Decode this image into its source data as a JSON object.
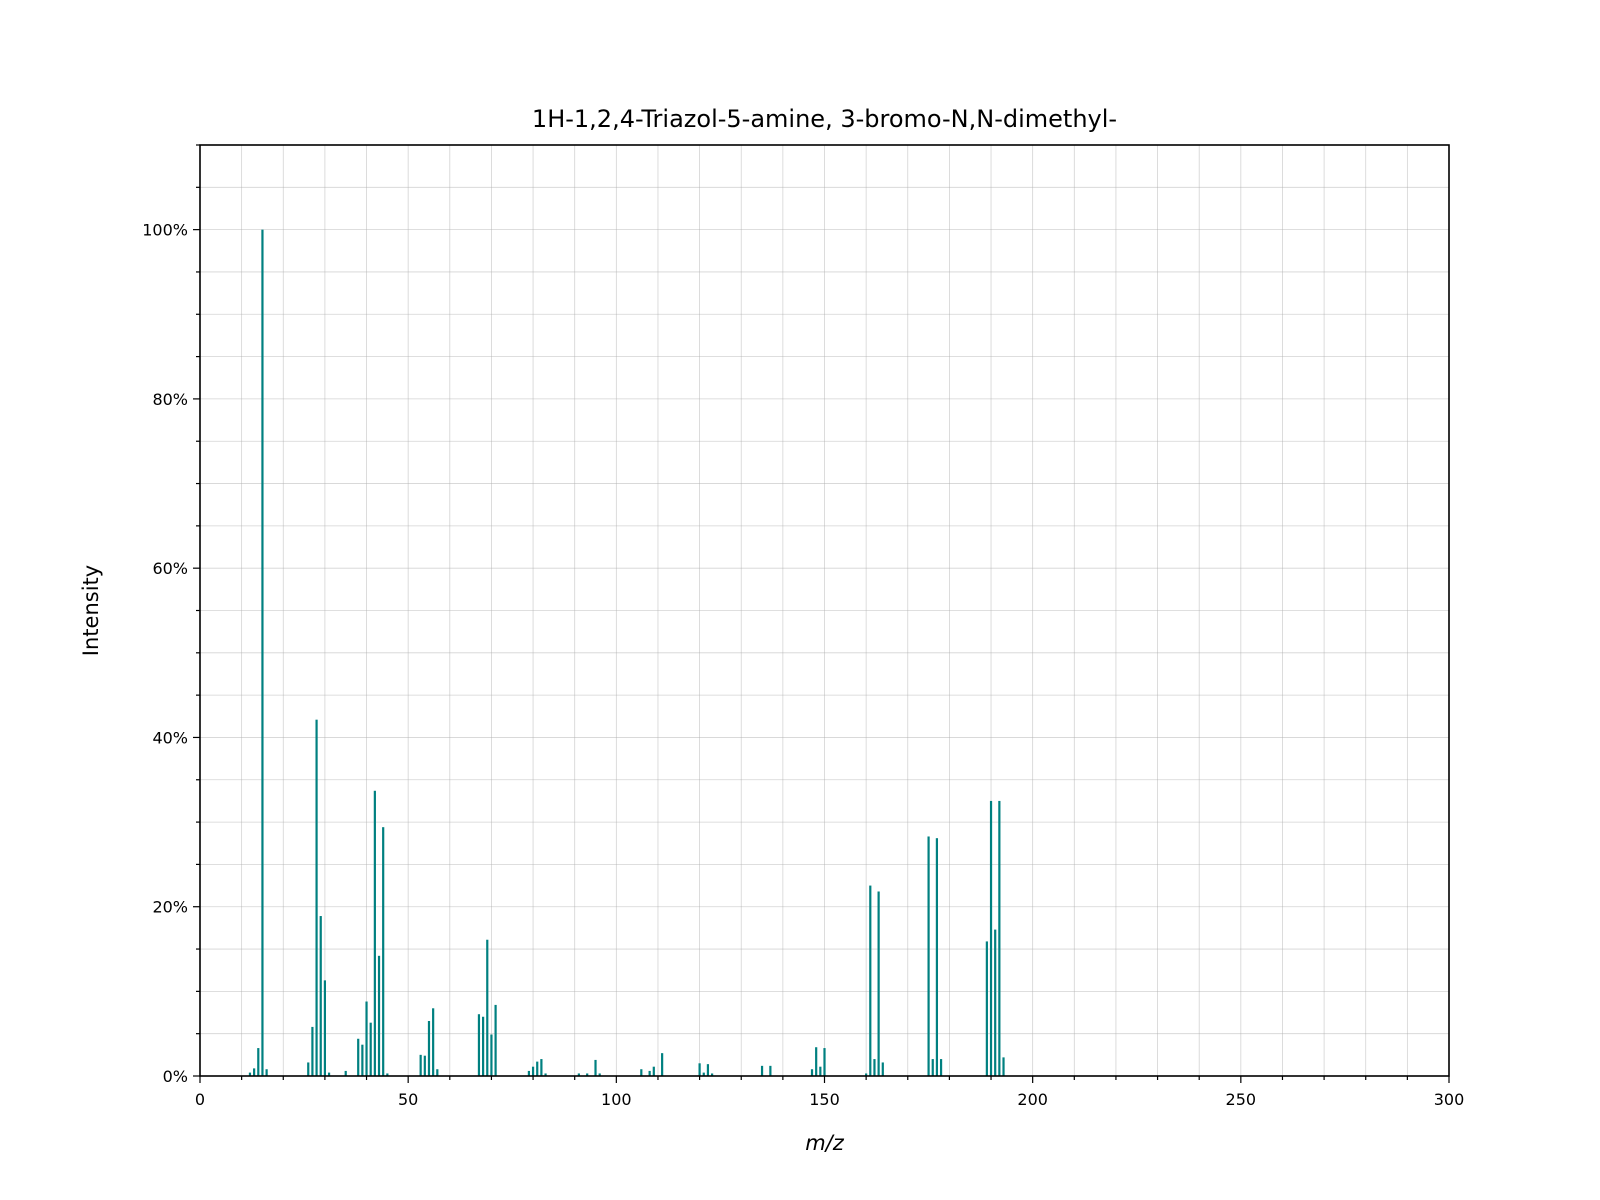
{
  "colors": {
    "bar": "#008080",
    "grid": "#b0b0b0",
    "frame": "#000000"
  },
  "chart_data": {
    "type": "bar",
    "title": "1H-1,2,4-Triazol-5-amine, 3-bromo-N,N-dimethyl-",
    "xlabel": "m/z",
    "ylabel": "Intensity",
    "xlim": [
      0,
      300
    ],
    "ylim": [
      0,
      110
    ],
    "grid": true,
    "legend": "none",
    "x_ticks": [
      0,
      50,
      100,
      150,
      200,
      250,
      300
    ],
    "x_tick_labels": [
      "0",
      "50",
      "100",
      "150",
      "200",
      "250",
      "300"
    ],
    "y_ticks": [
      0,
      20,
      40,
      60,
      80,
      100
    ],
    "y_tick_labels": [
      "0%",
      "20%",
      "40%",
      "60%",
      "80%",
      "100%"
    ],
    "peaks": [
      {
        "mz": 12,
        "intensity": 0.4
      },
      {
        "mz": 13,
        "intensity": 0.9
      },
      {
        "mz": 14,
        "intensity": 3.3
      },
      {
        "mz": 15,
        "intensity": 100
      },
      {
        "mz": 16,
        "intensity": 0.8
      },
      {
        "mz": 26,
        "intensity": 1.6
      },
      {
        "mz": 27,
        "intensity": 5.8
      },
      {
        "mz": 28,
        "intensity": 42.1
      },
      {
        "mz": 29,
        "intensity": 18.9
      },
      {
        "mz": 30,
        "intensity": 11.3
      },
      {
        "mz": 31,
        "intensity": 0.4
      },
      {
        "mz": 35,
        "intensity": 0.6
      },
      {
        "mz": 38,
        "intensity": 4.4
      },
      {
        "mz": 39,
        "intensity": 3.7
      },
      {
        "mz": 40,
        "intensity": 8.8
      },
      {
        "mz": 41,
        "intensity": 6.3
      },
      {
        "mz": 42,
        "intensity": 33.7
      },
      {
        "mz": 43,
        "intensity": 14.2
      },
      {
        "mz": 44,
        "intensity": 29.4
      },
      {
        "mz": 45,
        "intensity": 0.3
      },
      {
        "mz": 53,
        "intensity": 2.5
      },
      {
        "mz": 54,
        "intensity": 2.4
      },
      {
        "mz": 55,
        "intensity": 6.5
      },
      {
        "mz": 56,
        "intensity": 8.0
      },
      {
        "mz": 57,
        "intensity": 0.8
      },
      {
        "mz": 67,
        "intensity": 7.3
      },
      {
        "mz": 68,
        "intensity": 7.0
      },
      {
        "mz": 69,
        "intensity": 16.1
      },
      {
        "mz": 70,
        "intensity": 4.9
      },
      {
        "mz": 71,
        "intensity": 8.4
      },
      {
        "mz": 79,
        "intensity": 0.6
      },
      {
        "mz": 80,
        "intensity": 1.1
      },
      {
        "mz": 81,
        "intensity": 1.7
      },
      {
        "mz": 82,
        "intensity": 2.0
      },
      {
        "mz": 83,
        "intensity": 0.3
      },
      {
        "mz": 91,
        "intensity": 0.3
      },
      {
        "mz": 93,
        "intensity": 0.3
      },
      {
        "mz": 95,
        "intensity": 1.9
      },
      {
        "mz": 96,
        "intensity": 0.3
      },
      {
        "mz": 106,
        "intensity": 0.8
      },
      {
        "mz": 108,
        "intensity": 0.6
      },
      {
        "mz": 109,
        "intensity": 1.1
      },
      {
        "mz": 111,
        "intensity": 2.7
      },
      {
        "mz": 120,
        "intensity": 1.5
      },
      {
        "mz": 121,
        "intensity": 0.4
      },
      {
        "mz": 122,
        "intensity": 1.4
      },
      {
        "mz": 123,
        "intensity": 0.3
      },
      {
        "mz": 135,
        "intensity": 1.2
      },
      {
        "mz": 137,
        "intensity": 1.2
      },
      {
        "mz": 147,
        "intensity": 0.8
      },
      {
        "mz": 148,
        "intensity": 3.4
      },
      {
        "mz": 149,
        "intensity": 1.1
      },
      {
        "mz": 150,
        "intensity": 3.3
      },
      {
        "mz": 160,
        "intensity": 0.3
      },
      {
        "mz": 161,
        "intensity": 22.5
      },
      {
        "mz": 162,
        "intensity": 2.0
      },
      {
        "mz": 163,
        "intensity": 21.8
      },
      {
        "mz": 164,
        "intensity": 1.6
      },
      {
        "mz": 175,
        "intensity": 28.3
      },
      {
        "mz": 176,
        "intensity": 2.0
      },
      {
        "mz": 177,
        "intensity": 28.1
      },
      {
        "mz": 178,
        "intensity": 2.0
      },
      {
        "mz": 189,
        "intensity": 15.9
      },
      {
        "mz": 190,
        "intensity": 32.5
      },
      {
        "mz": 191,
        "intensity": 17.3
      },
      {
        "mz": 192,
        "intensity": 32.5
      },
      {
        "mz": 193,
        "intensity": 2.2
      }
    ]
  }
}
